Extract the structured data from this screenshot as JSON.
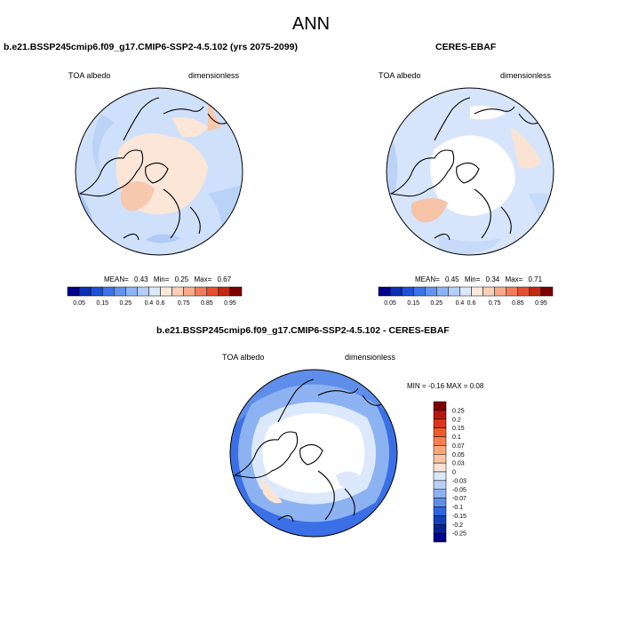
{
  "figure": {
    "title": "ANN",
    "top_left": {
      "title": "b.e21.BSSP245cmip6.f09_g17.CMIP6-SSP2-4.5.102 (yrs 2075-2099)",
      "variable": "TOA albedo",
      "units": "dimensionless",
      "stats": {
        "mean_label": "MEAN=",
        "mean": "0.43",
        "min_label": "Min=",
        "min": "0.25",
        "max_label": "Max=",
        "max": "0.67"
      }
    },
    "top_right": {
      "title": "CERES-EBAF",
      "variable": "TOA albedo",
      "units": "dimensionless",
      "stats": {
        "mean_label": "MEAN=",
        "mean": "0.45",
        "min_label": "Min=",
        "min": "0.34",
        "max_label": "Max=",
        "max": "0.71"
      }
    },
    "difference": {
      "title": "b.e21.BSSP245cmip6.f09_g17.CMIP6-SSP2-4.5.102 - CERES-EBAF",
      "variable": "TOA albedo",
      "units": "dimensionless",
      "minmax": "MIN = -0.16 MAX = 0.08"
    }
  },
  "colorbar_abs": {
    "labels": [
      "0.05",
      "0.15",
      "0.25",
      "0.4",
      "0.6",
      "0.75",
      "0.85",
      "0.95"
    ],
    "colors": [
      "#00008c",
      "#0a2fb4",
      "#1e50d8",
      "#3c73e8",
      "#6494f0",
      "#8cb4f6",
      "#b4d0fa",
      "#dce8fc",
      "#fde8dc",
      "#fccfb8",
      "#f8aa8a",
      "#f07c5a",
      "#e4502e",
      "#c42812",
      "#7c0000"
    ]
  },
  "colorbar_diff": {
    "labels": [
      "0.25",
      "0.2",
      "0.15",
      "0.1",
      "0.07",
      "0.05",
      "0.03",
      "0",
      "-0.03",
      "-0.05",
      "-0.07",
      "-0.1",
      "-0.15",
      "-0.2",
      "-0.25"
    ],
    "colors": [
      "#7c0000",
      "#b81810",
      "#dc3418",
      "#f05a28",
      "#f88050",
      "#fca678",
      "#fdc4a4",
      "#fde4d2",
      "#dce8fc",
      "#b8d0f8",
      "#8cb2f2",
      "#5e8eea",
      "#2e66de",
      "#1240bc",
      "#062490",
      "#00008c"
    ]
  }
}
